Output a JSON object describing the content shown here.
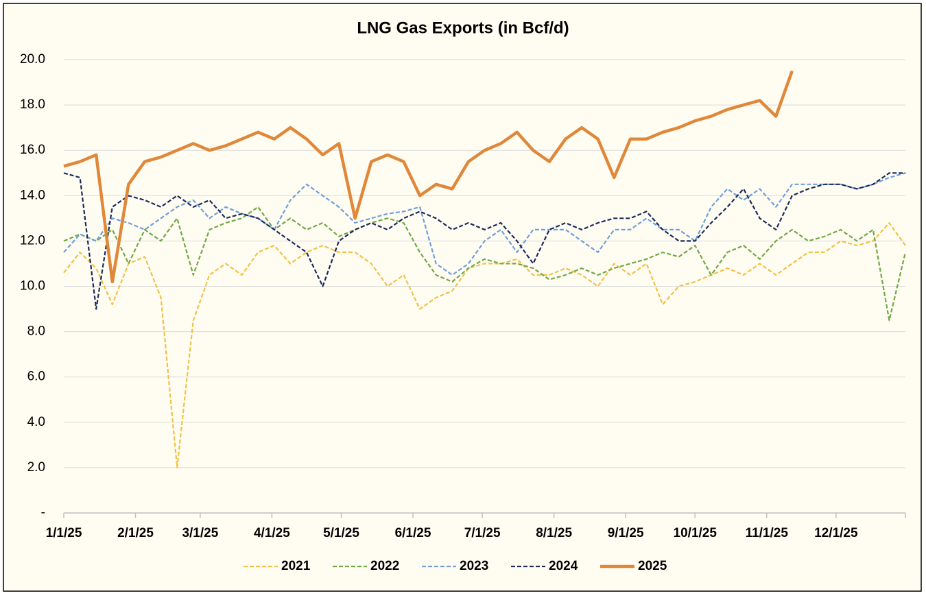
{
  "chart_data": {
    "type": "line",
    "title": "LNG Gas Exports (in Bcf/d)",
    "x": [
      "1/1/25",
      "1/8/25",
      "1/15/25",
      "1/22/25",
      "1/29/25",
      "2/5/25",
      "2/12/25",
      "2/19/25",
      "2/26/25",
      "3/5/25",
      "3/12/25",
      "3/19/25",
      "3/26/25",
      "4/2/25",
      "4/9/25",
      "4/16/25",
      "4/23/25",
      "4/30/25",
      "5/7/25",
      "5/14/25",
      "5/21/25",
      "5/28/25",
      "6/4/25",
      "6/11/25",
      "6/18/25",
      "6/25/25",
      "7/2/25",
      "7/9/25",
      "7/16/25",
      "7/23/25",
      "7/30/25",
      "8/6/25",
      "8/13/25",
      "8/20/25",
      "8/27/25",
      "9/3/25",
      "9/10/25",
      "9/17/25",
      "9/24/25",
      "10/1/25",
      "10/8/25",
      "10/15/25",
      "10/22/25",
      "10/29/25",
      "11/5/25",
      "11/12/25",
      "11/19/25",
      "11/26/25",
      "12/3/25",
      "12/10/25",
      "12/17/25",
      "12/24/25",
      "12/31/25"
    ],
    "xlim": [
      "1/1/25",
      "12/31/25"
    ],
    "xticks": [
      "1/1/25",
      "2/1/25",
      "3/1/25",
      "4/1/25",
      "5/1/25",
      "6/1/25",
      "7/1/25",
      "8/1/25",
      "9/1/25",
      "10/1/25",
      "11/1/25",
      "12/1/25"
    ],
    "ylim": [
      0,
      20
    ],
    "yticks": [
      {
        "value": 0,
        "label": "-"
      },
      {
        "value": 2,
        "label": "2.0"
      },
      {
        "value": 4,
        "label": "4.0"
      },
      {
        "value": 6,
        "label": "6.0"
      },
      {
        "value": 8,
        "label": "8.0"
      },
      {
        "value": 10,
        "label": "10.0"
      },
      {
        "value": 12,
        "label": "12.0"
      },
      {
        "value": 14,
        "label": "14.0"
      },
      {
        "value": 16,
        "label": "16.0"
      },
      {
        "value": 18,
        "label": "18.0"
      },
      {
        "value": 20,
        "label": "20.0"
      }
    ],
    "grid": true,
    "legend": "bottom",
    "series": [
      {
        "name": "2021",
        "color": "#f2c144",
        "dashed": true,
        "values": [
          10.6,
          11.5,
          10.8,
          9.2,
          11.0,
          11.3,
          9.5,
          2.0,
          8.5,
          10.5,
          11.0,
          10.5,
          11.5,
          11.8,
          11.0,
          11.5,
          11.8,
          11.5,
          11.5,
          11.0,
          10.0,
          10.5,
          9.0,
          9.5,
          9.8,
          10.8,
          11.0,
          11.0,
          11.2,
          10.5,
          10.5,
          10.8,
          10.5,
          10.0,
          11.0,
          10.5,
          11.0,
          9.2,
          10.0,
          10.2,
          10.5,
          10.8,
          10.5,
          11.0,
          10.5,
          11.0,
          11.5,
          11.5,
          12.0,
          11.8,
          12.0,
          12.8,
          11.8
        ]
      },
      {
        "name": "2022",
        "color": "#70a845",
        "dashed": true,
        "values": [
          12.0,
          12.3,
          12.0,
          12.5,
          11.0,
          12.5,
          12.0,
          13.0,
          10.5,
          12.5,
          12.8,
          13.0,
          13.5,
          12.5,
          13.0,
          12.5,
          12.8,
          12.2,
          12.5,
          12.8,
          13.0,
          12.8,
          11.5,
          10.5,
          10.2,
          10.8,
          11.2,
          11.0,
          11.0,
          10.8,
          10.3,
          10.5,
          10.8,
          10.5,
          10.8,
          11.0,
          11.2,
          11.5,
          11.3,
          11.8,
          10.5,
          11.5,
          11.8,
          11.2,
          12.0,
          12.5,
          12.0,
          12.2,
          12.5,
          12.0,
          12.5,
          8.5,
          11.5
        ]
      },
      {
        "name": "2023",
        "color": "#6f9fd8",
        "dashed": true,
        "values": [
          11.5,
          12.3,
          12.0,
          13.0,
          12.8,
          12.5,
          13.0,
          13.5,
          13.8,
          13.0,
          13.5,
          13.2,
          13.0,
          12.5,
          13.8,
          14.5,
          14.0,
          13.5,
          12.8,
          13.0,
          13.2,
          13.3,
          13.5,
          11.0,
          10.5,
          11.0,
          12.0,
          12.5,
          11.5,
          12.5,
          12.5,
          12.5,
          12.0,
          11.5,
          12.5,
          12.5,
          13.0,
          12.5,
          12.5,
          12.0,
          13.5,
          14.3,
          13.8,
          14.3,
          13.5,
          14.5,
          14.5,
          14.5,
          14.5,
          14.3,
          14.5,
          14.8,
          15.0
        ]
      },
      {
        "name": "2024",
        "color": "#1a2a5a",
        "dashed": true,
        "values": [
          15.0,
          14.8,
          9.0,
          13.5,
          14.0,
          13.8,
          13.5,
          14.0,
          13.5,
          13.8,
          13.0,
          13.2,
          13.0,
          12.5,
          12.0,
          11.5,
          10.0,
          12.0,
          12.5,
          12.8,
          12.5,
          13.0,
          13.3,
          13.0,
          12.5,
          12.8,
          12.5,
          12.8,
          12.0,
          11.0,
          12.5,
          12.8,
          12.5,
          12.8,
          13.0,
          13.0,
          13.3,
          12.5,
          12.0,
          12.0,
          12.8,
          13.5,
          14.3,
          13.0,
          12.5,
          14.0,
          14.3,
          14.5,
          14.5,
          14.3,
          14.5,
          15.0,
          15.0
        ]
      },
      {
        "name": "2025",
        "color": "#e0883a",
        "dashed": false,
        "values": [
          15.3,
          15.5,
          15.8,
          10.2,
          14.5,
          15.5,
          15.7,
          16.0,
          16.3,
          16.0,
          16.2,
          16.5,
          16.8,
          16.5,
          17.0,
          16.5,
          15.8,
          16.3,
          13.0,
          15.5,
          15.8,
          15.5,
          14.0,
          14.5,
          14.3,
          15.5,
          16.0,
          16.3,
          16.8,
          16.0,
          15.5,
          16.5,
          17.0,
          16.5,
          14.8,
          16.5,
          16.5,
          16.8,
          17.0,
          17.3,
          17.5,
          17.8,
          18.0,
          18.2,
          17.5,
          19.5,
          null,
          null,
          null,
          null,
          null,
          null,
          null
        ]
      }
    ]
  }
}
